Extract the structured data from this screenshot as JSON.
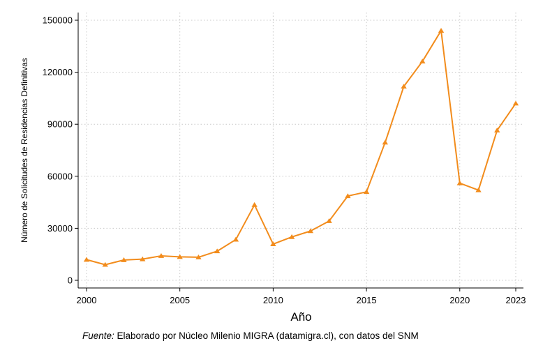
{
  "chart_data": {
    "type": "line",
    "title": "",
    "xlabel": "Año",
    "ylabel": "Número de Solicitudes de Residencias Definitivas",
    "x": [
      2000,
      2001,
      2002,
      2003,
      2004,
      2005,
      2006,
      2007,
      2008,
      2009,
      2010,
      2011,
      2012,
      2013,
      2014,
      2015,
      2016,
      2017,
      2018,
      2019,
      2020,
      2021,
      2022,
      2023
    ],
    "series": [
      {
        "values": [
          11900,
          9000,
          11700,
          12200,
          14100,
          13500,
          13300,
          16800,
          23500,
          43500,
          20900,
          25000,
          28400,
          34200,
          48600,
          51000,
          79500,
          111800,
          126300,
          144000,
          56000,
          52000,
          86500,
          102000
        ],
        "color": "#F28C1C",
        "marker": "triangle"
      }
    ],
    "x_ticks": [
      "2000",
      "2005",
      "2010",
      "2015",
      "2020",
      "2023"
    ],
    "y_ticks": [
      "0",
      "30000",
      "60000",
      "90000",
      "120000",
      "150000"
    ],
    "xlim": [
      2000,
      2023
    ],
    "ylim": [
      0,
      150000
    ],
    "grid": "dotted horizontal and vertical",
    "legend": "none"
  },
  "source": {
    "label": "Fuente:",
    "text": " Elaborado por Núcleo Milenio MIGRA (datamigra.cl), con datos del SNM"
  }
}
